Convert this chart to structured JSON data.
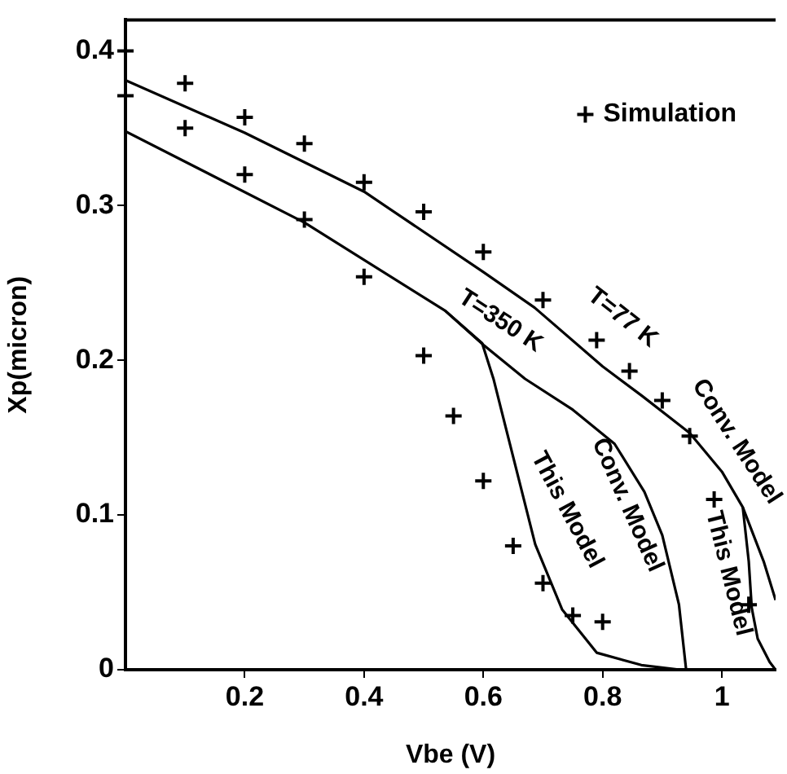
{
  "chart_data": {
    "type": "line",
    "xlabel": "Vbe (V)",
    "ylabel": "Xp(micron)",
    "xlim": [
      0,
      1.09
    ],
    "ylim": [
      0,
      0.42
    ],
    "xticks": [
      0.2,
      0.4,
      0.6,
      0.8,
      1
    ],
    "yticks": [
      0,
      0.1,
      0.2,
      0.3,
      0.4
    ],
    "grid": false,
    "legend": "top right",
    "marker": "none",
    "line_style": "solid",
    "series": [
      {
        "color": "#000000",
        "x": [
          0,
          0.2,
          0.4,
          0.6,
          0.686,
          0.8,
          0.866,
          0.946,
          1.0,
          1.035,
          1.07,
          1.09
        ],
        "values": [
          0.381,
          0.347,
          0.309,
          0.257,
          0.234,
          0.196,
          0.177,
          0.153,
          0.128,
          0.105,
          0.07,
          0.045
        ]
      },
      {
        "color": "#000000",
        "x": [
          1.035,
          1.045,
          1.05,
          1.06,
          1.08,
          1.09
        ],
        "values": [
          0.105,
          0.07,
          0.04,
          0.02,
          0.005,
          0
        ]
      },
      {
        "color": "#000000",
        "x": [
          0,
          0.3,
          0.536,
          0.6,
          0.67,
          0.75,
          0.82,
          0.87,
          0.9,
          0.928,
          0.94
        ],
        "values": [
          0.348,
          0.289,
          0.232,
          0.21,
          0.188,
          0.168,
          0.146,
          0.115,
          0.087,
          0.042,
          0
        ]
      },
      {
        "color": "#000000",
        "x": [
          0.536,
          0.598,
          0.617,
          0.651,
          0.687,
          0.732,
          0.79,
          0.865,
          0.93
        ],
        "values": [
          0.232,
          0.211,
          0.188,
          0.136,
          0.081,
          0.039,
          0.011,
          0.003,
          0
        ]
      },
      {
        "type": "scatter",
        "name": "Simulation",
        "marker": "cross",
        "color": "#000000",
        "x": [
          0,
          0.1,
          0.2,
          0.3,
          0.4,
          0.5,
          0.6,
          0.7,
          0.79,
          0.845,
          0.9,
          0.946,
          0.987,
          1.045,
          0,
          0.1,
          0.2,
          0.3,
          0.4,
          0.5,
          0.55,
          0.6,
          0.65,
          0.7,
          0.75,
          0.8
        ],
        "values": [
          0.4,
          0.379,
          0.357,
          0.34,
          0.315,
          0.296,
          0.27,
          0.239,
          0.213,
          0.193,
          0.174,
          0.151,
          0.11,
          0.042,
          0.371,
          0.35,
          0.32,
          0.291,
          0.254,
          0.203,
          0.164,
          0.122,
          0.08,
          0.056,
          0.035,
          0.031
        ]
      }
    ],
    "annotations": [
      "T=77 K",
      "T=350 K",
      "Conv. Model",
      "This Model",
      "Conv. Model",
      "This Model"
    ]
  }
}
